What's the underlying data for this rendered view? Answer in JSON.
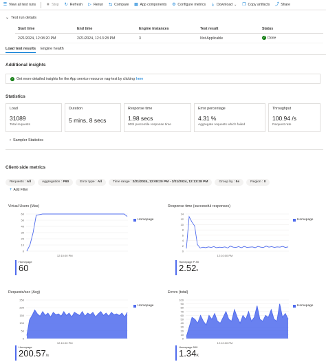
{
  "toolbar": {
    "items": [
      {
        "label": "View all test runs",
        "icon": "list-icon",
        "enabled": true
      },
      {
        "label": "Stop",
        "icon": "stop-icon",
        "enabled": false
      },
      {
        "label": "Refresh",
        "icon": "refresh-icon",
        "enabled": true
      },
      {
        "label": "Rerun",
        "icon": "rerun-icon",
        "enabled": true
      },
      {
        "label": "Compare",
        "icon": "compare-icon",
        "enabled": true
      },
      {
        "label": "App components",
        "icon": "app-components-icon",
        "enabled": true
      },
      {
        "label": "Configure metrics",
        "icon": "gear-icon",
        "enabled": true
      },
      {
        "label": "Download",
        "icon": "download-icon",
        "enabled": true
      },
      {
        "label": "Copy artifacts",
        "icon": "copy-icon",
        "enabled": true
      },
      {
        "label": "Share",
        "icon": "share-icon",
        "enabled": true
      }
    ]
  },
  "test_run_details": {
    "heading": "Test run details",
    "columns": [
      "Start time",
      "End time",
      "Engine instances",
      "Test result",
      "Status"
    ],
    "row": {
      "start": "2/21/2024, 12:08:20 PM",
      "end": "2/21/2024, 12:13:28 PM",
      "engines": "3",
      "result": "Not Applicable",
      "status": "Done"
    }
  },
  "tabs": [
    {
      "label": "Load test results",
      "active": true
    },
    {
      "label": "Engine health",
      "active": false
    }
  ],
  "insights": {
    "heading": "Additional insights",
    "text": "Get more detailed insights for the App service resource nag-test by clicking",
    "link": "here"
  },
  "statistics": {
    "heading": "Statistics",
    "cards": [
      {
        "label": "Load",
        "value": "31089",
        "sub": "Total requests"
      },
      {
        "label": "Duration",
        "value": "5 mins, 8 secs",
        "sub": ""
      },
      {
        "label": "Response time",
        "value": "1.98 secs",
        "sub": "90th percentile response time"
      },
      {
        "label": "Error percentage",
        "value": "4.31 %",
        "sub": "Aggregate requests which failed"
      },
      {
        "label": "Throughput",
        "value": "100.94 /s",
        "sub": "Request rate"
      }
    ],
    "sampler": "Sampler Statistics"
  },
  "client_metrics": {
    "heading": "Client-side metrics",
    "filters": [
      {
        "key": "Requests",
        "value": "All"
      },
      {
        "key": "Aggregation",
        "value": "P90"
      },
      {
        "key": "Error type",
        "value": "All"
      },
      {
        "key": "Time range",
        "value": "2/21/2024, 12:08:20 PM - 2/21/2024, 12:13:28 PM"
      },
      {
        "key": "Group by",
        "value": "5s"
      },
      {
        "key": "Region",
        "value": "0"
      }
    ],
    "add_filter": "Add Filter"
  },
  "chart_data": [
    {
      "type": "line",
      "title": "Virtual Users (Max)",
      "ylim": [
        0,
        60
      ],
      "yticks": [
        "0",
        "10",
        "20",
        "30",
        "40",
        "50",
        "60"
      ],
      "xtick": "12:10:00 PM",
      "series": [
        {
          "name": "Homepage",
          "values": [
            0,
            10,
            30,
            58,
            59,
            60,
            60,
            60,
            60,
            60,
            60,
            60,
            60,
            60,
            60,
            60,
            60,
            60,
            60,
            60,
            60,
            60,
            60,
            60,
            60,
            60,
            60,
            60,
            60,
            60,
            60,
            60,
            56
          ]
        }
      ],
      "summary": {
        "label": "Homepage",
        "value": "60",
        "unit": ""
      }
    },
    {
      "type": "line",
      "title": "Response time (successful responses)",
      "ylim": [
        0,
        14
      ],
      "yticks": [
        "0",
        "2",
        "4",
        "6",
        "8",
        "10",
        "12",
        "14"
      ],
      "xtick": "12:10:00 PM",
      "series": [
        {
          "name": "Homepage",
          "values": [
            1,
            13,
            11,
            9.5,
            2.5,
            1.2,
            1.5,
            1.3,
            1.6,
            1.4,
            1.7,
            1.3,
            1.5,
            1.4,
            1.6,
            1.2,
            1.9,
            1.5,
            1.4,
            1.7,
            1.3,
            1.8,
            1.4,
            1.5,
            1.6,
            1.3,
            1.8,
            1.5,
            1.4,
            1.9,
            1.5,
            1.7,
            1.4,
            1.6,
            1.5,
            1.8,
            1.4,
            1.6
          ]
        }
      ],
      "summary": {
        "label": "Homepage P-90",
        "value": "2.52",
        "unit": "s"
      }
    },
    {
      "type": "area",
      "title": "Requests/sec (Avg)",
      "ylim": [
        0,
        250
      ],
      "yticks": [
        "0",
        "50",
        "100",
        "150",
        "200",
        "250"
      ],
      "xtick": "12:10:00 PM",
      "series": [
        {
          "name": "Homepage",
          "values": [
            20,
            120,
            150,
            185,
            160,
            145,
            175,
            150,
            165,
            140,
            170,
            155,
            160,
            145,
            175,
            150,
            165,
            140,
            170,
            160,
            150,
            175,
            145,
            165,
            155,
            170,
            140,
            160,
            175,
            150,
            165,
            145,
            170,
            155,
            160,
            150,
            165,
            140,
            170
          ]
        }
      ],
      "summary": {
        "label": "Homepage",
        "value": "200.57",
        "unit": "/s"
      }
    },
    {
      "type": "area",
      "title": "Errors (total)",
      "ylim": [
        0,
        100
      ],
      "yticks": [
        "0",
        "10",
        "20",
        "30",
        "40",
        "50",
        "60",
        "70",
        "80",
        "90",
        "100"
      ],
      "xtick": "12:10:00 PM",
      "series": [
        {
          "name": "Homepage",
          "values": [
            5,
            30,
            55,
            50,
            40,
            60,
            45,
            35,
            60,
            50,
            65,
            45,
            40,
            55,
            70,
            50,
            45,
            75,
            55,
            40,
            60,
            50,
            70,
            45,
            55,
            85,
            50,
            45,
            60,
            55,
            75,
            50,
            45,
            90,
            55,
            65,
            50
          ]
        }
      ],
      "summary": {
        "label": "Homepage 500",
        "value": "1.34",
        "unit": "K"
      }
    }
  ]
}
